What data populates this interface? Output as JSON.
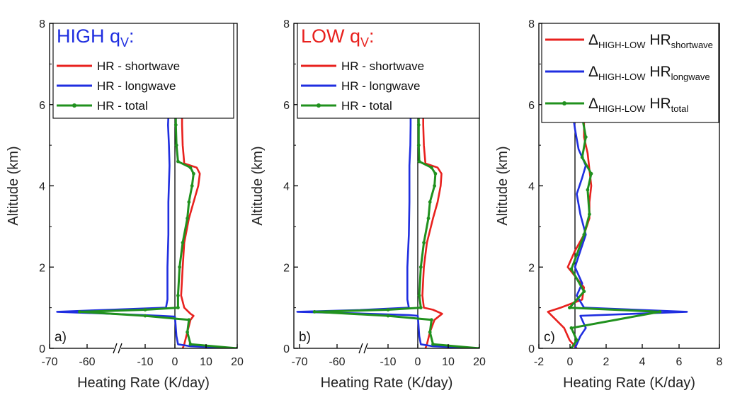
{
  "figure_colors": {
    "shortwave": "#e8211e",
    "longwave": "#1f2ee0",
    "total": "#20911e",
    "high_heading": "#1f2ee0",
    "low_heading": "#e8211e"
  },
  "chart_data": [
    {
      "type": "line",
      "panel_label": "a)",
      "heading": {
        "main": "HIGH q",
        "sub": "V",
        "suffix": ":"
      },
      "xlabel": "Heating Rate (K/day)",
      "ylabel": "Altitude (km)",
      "xlim": [
        -70,
        20
      ],
      "x_axis_break": "between -60 and -10",
      "xticks": [
        "-70",
        "-60",
        "-10",
        "0",
        "10",
        "20"
      ],
      "ylim": [
        0,
        8
      ],
      "yticks": [
        "0",
        "2",
        "4",
        "6",
        "8"
      ],
      "legend_position": "top-left",
      "series": [
        {
          "name": "HR - shortwave",
          "key": "shortwave",
          "points": [
            [
              2.5,
              0
            ],
            [
              3,
              0.1
            ],
            [
              4,
              0.4
            ],
            [
              5,
              0.7
            ],
            [
              6,
              0.8
            ],
            [
              5,
              0.85
            ],
            [
              3,
              1.0
            ],
            [
              2,
              1.3
            ],
            [
              2.5,
              2.0
            ],
            [
              3,
              2.6
            ],
            [
              4.5,
              3.2
            ],
            [
              6,
              3.6
            ],
            [
              7.5,
              4.0
            ],
            [
              8,
              4.3
            ],
            [
              7,
              4.45
            ],
            [
              3,
              4.55
            ],
            [
              2.5,
              5.0
            ],
            [
              2.3,
              5.5
            ],
            [
              2.3,
              5.7
            ]
          ]
        },
        {
          "name": "HR - longwave",
          "key": "longwave",
          "points": [
            [
              20,
              0
            ],
            [
              5,
              0.05
            ],
            [
              1,
              0.1
            ],
            [
              0.5,
              0.3
            ],
            [
              0.2,
              0.6
            ],
            [
              0,
              0.78
            ],
            [
              -5,
              0.8
            ],
            [
              -40,
              0.85
            ],
            [
              -68,
              0.9
            ],
            [
              -40,
              0.95
            ],
            [
              -3,
              1.0
            ],
            [
              -2.5,
              1.2
            ],
            [
              -2.5,
              2.0
            ],
            [
              -2.2,
              2.8
            ],
            [
              -2.2,
              3.6
            ],
            [
              -1.8,
              4.5
            ],
            [
              -2,
              5.0
            ],
            [
              -2.3,
              5.5
            ],
            [
              -2.2,
              5.7
            ]
          ]
        },
        {
          "name": "HR - total",
          "key": "total",
          "points": [
            [
              20,
              0
            ],
            [
              5,
              0.1
            ],
            [
              4,
              0.4
            ],
            [
              4.5,
              0.7
            ],
            [
              -10,
              0.8
            ],
            [
              -62,
              0.9
            ],
            [
              -10,
              0.95
            ],
            [
              1,
              1.0
            ],
            [
              1,
              1.3
            ],
            [
              1.5,
              2.0
            ],
            [
              2.5,
              2.6
            ],
            [
              4,
              3.2
            ],
            [
              4.5,
              3.6
            ],
            [
              5.5,
              4.0
            ],
            [
              6,
              4.3
            ],
            [
              5,
              4.45
            ],
            [
              1,
              4.6
            ],
            [
              0.5,
              5.0
            ],
            [
              0.3,
              5.5
            ],
            [
              0.3,
              5.7
            ]
          ]
        }
      ]
    },
    {
      "type": "line",
      "panel_label": "b)",
      "heading": {
        "main": "LOW q",
        "sub": "V",
        "suffix": ":"
      },
      "xlabel": "Heating Rate (K/day)",
      "ylabel": "Altitude (km)",
      "xlim": [
        -75,
        20
      ],
      "x_axis_break": "between -60 and -10",
      "xticks": [
        "-70",
        "-60",
        "-10",
        "0",
        "10",
        "20"
      ],
      "ylim": [
        0,
        8
      ],
      "yticks": [
        "0",
        "2",
        "4",
        "6",
        "8"
      ],
      "legend_position": "top-left",
      "series": [
        {
          "name": "HR - shortwave",
          "key": "shortwave",
          "points": [
            [
              2.5,
              0
            ],
            [
              3,
              0.1
            ],
            [
              4,
              0.4
            ],
            [
              5.5,
              0.7
            ],
            [
              8,
              0.85
            ],
            [
              5,
              0.95
            ],
            [
              2,
              1.0
            ],
            [
              1.5,
              1.3
            ],
            [
              2,
              2.0
            ],
            [
              3,
              2.6
            ],
            [
              5,
              3.2
            ],
            [
              6.5,
              3.6
            ],
            [
              7.5,
              4.0
            ],
            [
              7.8,
              4.3
            ],
            [
              6.5,
              4.45
            ],
            [
              2.5,
              4.55
            ],
            [
              2,
              5.0
            ],
            [
              1.8,
              5.5
            ],
            [
              1.8,
              5.7
            ]
          ]
        },
        {
          "name": "HR - longwave",
          "key": "longwave",
          "points": [
            [
              20,
              0
            ],
            [
              5,
              0.05
            ],
            [
              1,
              0.1
            ],
            [
              0.5,
              0.3
            ],
            [
              0.2,
              0.6
            ],
            [
              0,
              0.8
            ],
            [
              -3,
              0.82
            ],
            [
              -40,
              0.86
            ],
            [
              -72,
              0.9
            ],
            [
              -40,
              0.94
            ],
            [
              -3,
              1.0
            ],
            [
              -3.5,
              1.2
            ],
            [
              -3.5,
              2.0
            ],
            [
              -3,
              2.8
            ],
            [
              -2.8,
              3.6
            ],
            [
              -2.8,
              4.5
            ],
            [
              -2.5,
              5.0
            ],
            [
              -2.4,
              5.5
            ],
            [
              -2.4,
              5.7
            ]
          ]
        },
        {
          "name": "HR - total",
          "key": "total",
          "points": [
            [
              20,
              0
            ],
            [
              5,
              0.1
            ],
            [
              4,
              0.4
            ],
            [
              4.5,
              0.7
            ],
            [
              -10,
              0.8
            ],
            [
              -66,
              0.9
            ],
            [
              -10,
              0.95
            ],
            [
              1,
              1.0
            ],
            [
              0.5,
              1.3
            ],
            [
              1,
              2.0
            ],
            [
              2,
              2.6
            ],
            [
              3.5,
              3.2
            ],
            [
              4,
              3.6
            ],
            [
              5.5,
              4.0
            ],
            [
              5.8,
              4.3
            ],
            [
              4.5,
              4.45
            ],
            [
              0.5,
              4.6
            ],
            [
              0.3,
              5.0
            ],
            [
              0.3,
              5.5
            ],
            [
              0.3,
              5.7
            ]
          ]
        }
      ]
    },
    {
      "type": "line",
      "panel_label": "c)",
      "xlabel": "Heating Rate (K/day)",
      "ylabel": "Altitude (km)",
      "xlim": [
        -2,
        8
      ],
      "xticks": [
        "-2",
        "0",
        "2",
        "4",
        "6",
        "8"
      ],
      "ylim": [
        0,
        8
      ],
      "yticks": [
        "0",
        "2",
        "4",
        "6",
        "8"
      ],
      "legend_position": "top-left",
      "legend_prefix": "Δ",
      "legend_subscript": "HIGH-LOW",
      "legend_base": "HR",
      "series": [
        {
          "name_sub": "shortwave",
          "key": "shortwave",
          "points": [
            [
              0.1,
              0
            ],
            [
              -0.3,
              0.2
            ],
            [
              -0.6,
              0.5
            ],
            [
              -1.5,
              0.9
            ],
            [
              -0.8,
              1.0
            ],
            [
              0.4,
              1.2
            ],
            [
              0.5,
              1.5
            ],
            [
              -0.4,
              2.0
            ],
            [
              0,
              2.4
            ],
            [
              0.5,
              2.8
            ],
            [
              0.8,
              3.2
            ],
            [
              0.8,
              3.6
            ],
            [
              0.9,
              4.0
            ],
            [
              0.8,
              4.4
            ],
            [
              0.7,
              4.8
            ],
            [
              0.5,
              5.2
            ],
            [
              0.5,
              5.7
            ]
          ]
        },
        {
          "name_sub": "longwave",
          "key": "longwave",
          "points": [
            [
              0,
              0
            ],
            [
              0.3,
              0.3
            ],
            [
              0.6,
              0.5
            ],
            [
              0.3,
              0.8
            ],
            [
              6.2,
              0.9
            ],
            [
              0.5,
              1.0
            ],
            [
              0.1,
              1.3
            ],
            [
              0.4,
              1.6
            ],
            [
              0,
              2.0
            ],
            [
              0.3,
              2.4
            ],
            [
              0.6,
              2.8
            ],
            [
              0.3,
              3.3
            ],
            [
              0.1,
              3.8
            ],
            [
              0.4,
              4.2
            ],
            [
              0.6,
              4.5
            ],
            [
              0.2,
              4.9
            ],
            [
              0,
              5.4
            ],
            [
              -0.1,
              5.7
            ]
          ]
        },
        {
          "name_sub": "total",
          "key": "total",
          "points": [
            [
              -0.2,
              0
            ],
            [
              0.1,
              0.2
            ],
            [
              -0.2,
              0.5
            ],
            [
              4.7,
              0.9
            ],
            [
              -0.3,
              1.0
            ],
            [
              0.5,
              1.4
            ],
            [
              -0.2,
              1.95
            ],
            [
              0.1,
              2.3
            ],
            [
              0.5,
              2.8
            ],
            [
              0.8,
              3.3
            ],
            [
              0.7,
              3.9
            ],
            [
              0.9,
              4.3
            ],
            [
              0.4,
              4.7
            ],
            [
              0.6,
              5.2
            ],
            [
              0.4,
              5.7
            ]
          ]
        }
      ]
    }
  ]
}
